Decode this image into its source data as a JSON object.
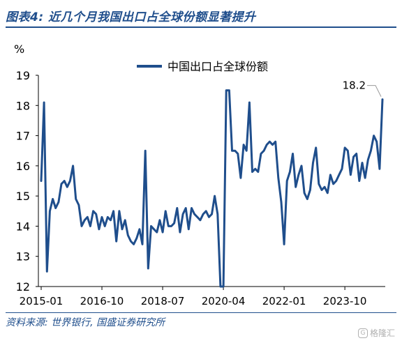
{
  "header": {
    "title": "图表4:  近几个月我国出口占全球份额显著提升"
  },
  "footer": {
    "source": "资料来源:  世界银行,  国盛证券研究所"
  },
  "watermark": {
    "text": "格隆汇",
    "logo_glyph": "G"
  },
  "colors": {
    "line": "#1f4e8c",
    "title": "#1f4e8c"
  },
  "chart_data": {
    "type": "line",
    "title": "",
    "ylabel": "%",
    "xlabel": "",
    "ylim": [
      12,
      19
    ],
    "yticks": [
      12,
      13,
      14,
      15,
      16,
      17,
      18,
      19
    ],
    "xtick_labels": [
      "2015-01",
      "2016-10",
      "2018-07",
      "2020-04",
      "2022-01",
      "2023-10"
    ],
    "xtick_indices": [
      0,
      21,
      42,
      63,
      84,
      105
    ],
    "grid": false,
    "legend": {
      "position": "top-center",
      "entries": [
        "中国出口占全球份额"
      ]
    },
    "annotation": {
      "text": "18.2"
    },
    "series": [
      {
        "name": "中国出口占全球份额",
        "x_start": "2015-01",
        "frequency": "monthly",
        "values": [
          15.5,
          18.1,
          12.5,
          14.5,
          14.9,
          14.6,
          14.8,
          15.4,
          15.5,
          15.3,
          15.5,
          16.0,
          14.9,
          14.7,
          14.0,
          14.2,
          14.3,
          14.0,
          14.5,
          14.4,
          13.9,
          14.3,
          14.0,
          14.3,
          14.2,
          14.5,
          13.5,
          14.5,
          13.9,
          14.2,
          13.7,
          13.5,
          13.4,
          13.6,
          13.9,
          13.4,
          16.5,
          12.6,
          14.0,
          13.9,
          13.8,
          14.2,
          13.8,
          14.5,
          14.0,
          14.0,
          14.1,
          14.6,
          13.8,
          14.4,
          14.6,
          13.9,
          14.6,
          14.4,
          14.3,
          14.2,
          14.4,
          14.5,
          14.3,
          14.4,
          15.0,
          14.4,
          12.0,
          12.0,
          18.5,
          18.5,
          16.5,
          16.5,
          16.4,
          15.6,
          16.7,
          16.5,
          18.1,
          15.8,
          15.9,
          15.8,
          16.4,
          16.5,
          16.7,
          16.8,
          16.7,
          16.8,
          15.6,
          14.8,
          13.4,
          15.5,
          15.8,
          16.4,
          15.3,
          15.7,
          16.0,
          15.1,
          14.9,
          15.2,
          16.1,
          16.6,
          15.4,
          15.2,
          15.3,
          15.1,
          15.7,
          15.4,
          15.5,
          15.7,
          15.9,
          16.6,
          16.5,
          15.7,
          16.3,
          16.4,
          15.5,
          16.1,
          15.6,
          16.2,
          16.5,
          17.0,
          16.8,
          15.9,
          18.2
        ]
      }
    ]
  }
}
